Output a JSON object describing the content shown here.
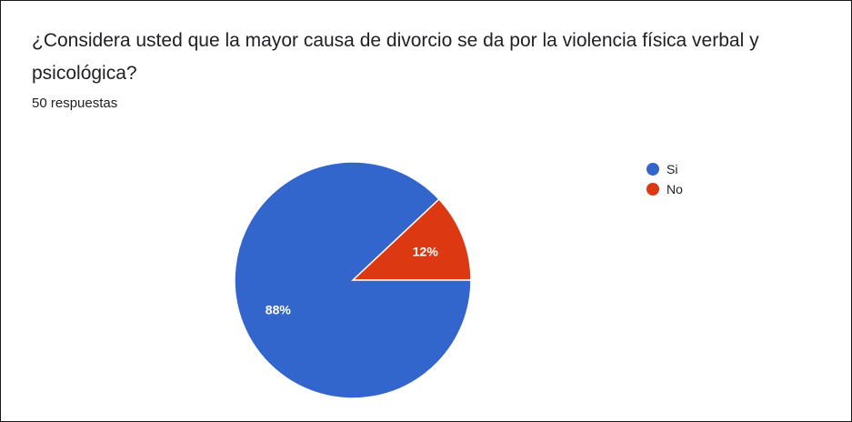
{
  "question": {
    "title": "¿Considera usted que la mayor causa de divorcio se da por la violencia física verbal y psicológica?",
    "responses_label": "50 respuestas"
  },
  "chart_data": {
    "type": "pie",
    "categories": [
      "Si",
      "No"
    ],
    "values": [
      88,
      12
    ],
    "value_labels": [
      "88%",
      "12%"
    ],
    "colors": [
      "#3366cc",
      "#dc3912"
    ],
    "legend_placement": "right"
  }
}
